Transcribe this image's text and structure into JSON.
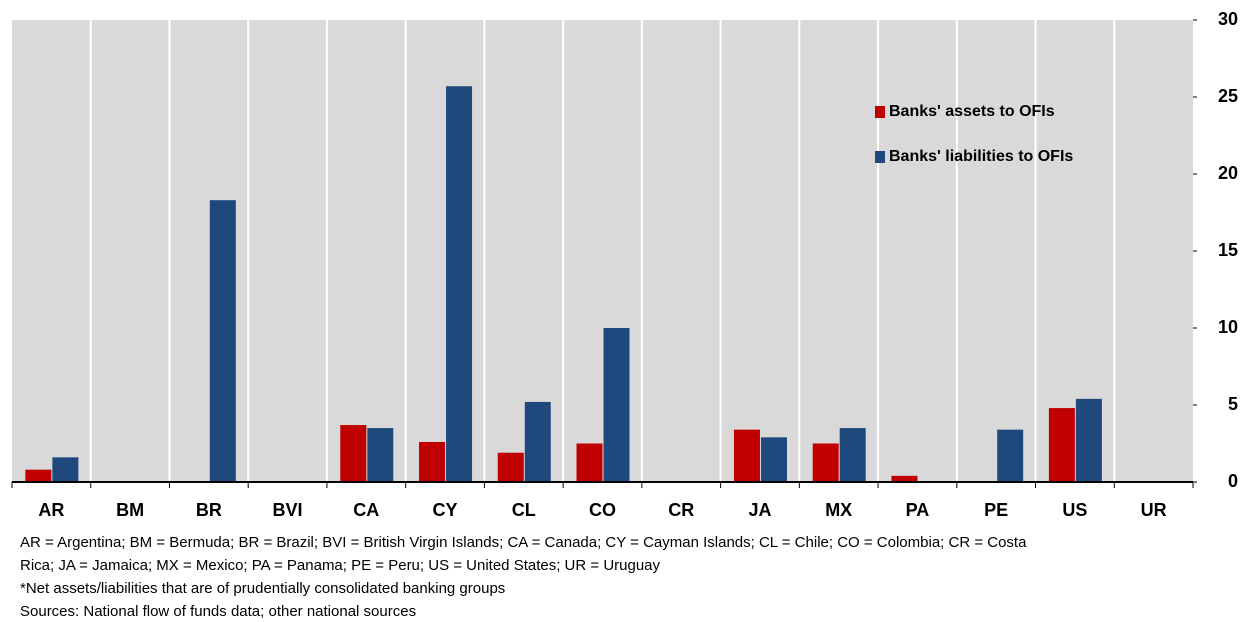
{
  "chart_data": {
    "type": "bar",
    "categories": [
      "AR",
      "BM",
      "BR",
      "BVI",
      "CA",
      "CY",
      "CL",
      "CO",
      "CR",
      "JA",
      "MX",
      "PA",
      "PE",
      "US",
      "UR"
    ],
    "series": [
      {
        "name": "Banks' assets to OFIs",
        "color": "#c00000",
        "values": [
          0.8,
          null,
          null,
          null,
          3.7,
          2.6,
          1.9,
          2.5,
          null,
          3.4,
          2.5,
          0.4,
          null,
          4.8,
          null
        ]
      },
      {
        "name": "Banks' liabilities to OFIs",
        "color": "#1f497d",
        "values": [
          1.6,
          null,
          18.3,
          null,
          3.5,
          25.7,
          5.2,
          10.0,
          null,
          2.9,
          3.5,
          null,
          3.4,
          5.4,
          null
        ]
      }
    ],
    "ylim": [
      0,
      30
    ],
    "yticks": [
      0,
      5,
      10,
      15,
      20,
      25,
      30
    ],
    "background": "#d9d9d9",
    "notes": [
      "AR = Argentina; BM = Bermuda; BR = Brazil; BVI = British Virgin Islands; CA = Canada; CY = Cayman Islands; CL = Chile;  CO = Colombia; CR = Costa",
      "Rica; JA = Jamaica; MX = Mexico; PA = Panama; PE = Peru; US = United States; UR = Uruguay",
      "*Net assets/liabilities that are of prudentially consolidated banking groups",
      "Sources: National flow of funds data; other national sources"
    ]
  }
}
